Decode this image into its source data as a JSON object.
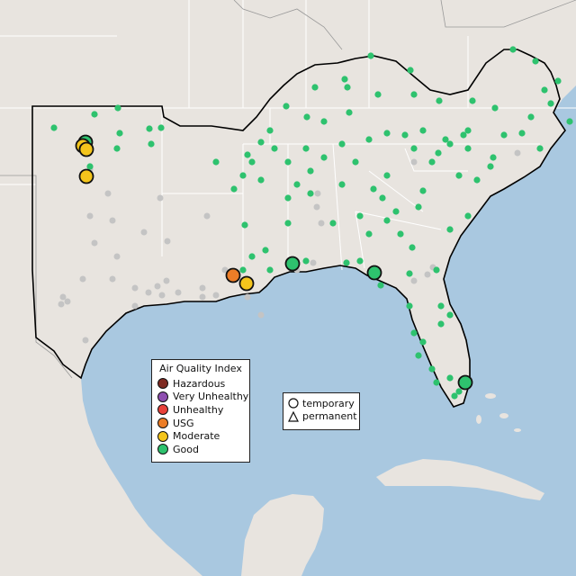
{
  "legend": {
    "title": "Air Quality Index",
    "categories": [
      {
        "label": "Hazardous",
        "color": "#7e2a22"
      },
      {
        "label": "Very Unhealthy",
        "color": "#8e4fb0"
      },
      {
        "label": "Unhealthy",
        "color": "#e8413a"
      },
      {
        "label": "USG",
        "color": "#ec7d27"
      },
      {
        "label": "Moderate",
        "color": "#f4c51c"
      },
      {
        "label": "Good",
        "color": "#2ec26e"
      }
    ]
  },
  "monitor_types": [
    {
      "label": "temporary",
      "shape": "circle-icon"
    },
    {
      "label": "permanent",
      "shape": "triangle-icon"
    }
  ],
  "colors": {
    "water": "#a9c8e0",
    "land": "#e8e4df",
    "no_data": "#c4c4c4",
    "region_outline": "#000000",
    "state_border": "#ffffff"
  }
}
